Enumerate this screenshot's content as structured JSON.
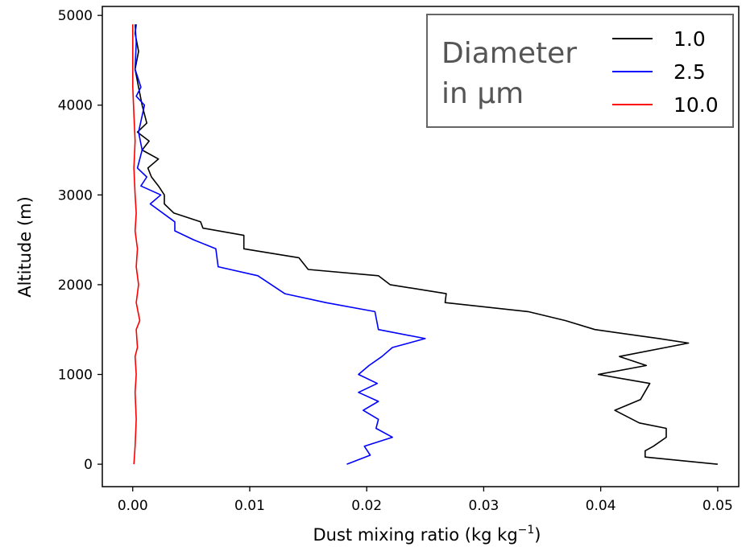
{
  "chart_data": {
    "type": "line",
    "xlabel": "Dust mixing ratio (kg kg",
    "xlabel_superscript": "−1",
    "xlabel_suffix": ")",
    "ylabel": "Altitude (m)",
    "xlim": [
      -0.0026,
      0.0518
    ],
    "ylim": [
      -250,
      5100
    ],
    "xticks": [
      0.0,
      0.01,
      0.02,
      0.03,
      0.04,
      0.05
    ],
    "xtick_labels": [
      "0.00",
      "0.01",
      "0.02",
      "0.03",
      "0.04",
      "0.05"
    ],
    "yticks": [
      0,
      1000,
      2000,
      3000,
      4000,
      5000
    ],
    "ytick_labels": [
      "0",
      "1000",
      "2000",
      "3000",
      "4000",
      "5000"
    ],
    "grid": false,
    "legend": {
      "placement": "top-right",
      "title_lines": [
        "Diameter",
        "in μm"
      ]
    },
    "series": [
      {
        "name": "1.0",
        "color": "#000000",
        "x": [
          0.05,
          0.0438,
          0.0438,
          0.0445,
          0.0456,
          0.0456,
          0.0433,
          0.0412,
          0.0434,
          0.0442,
          0.0398,
          0.0439,
          0.0416,
          0.0475,
          0.045,
          0.0395,
          0.037,
          0.0338,
          0.0267,
          0.0268,
          0.022,
          0.021,
          0.015,
          0.0142,
          0.0095,
          0.0095,
          0.006,
          0.0058,
          0.0035,
          0.0027,
          0.0027,
          0.0022,
          0.0016,
          0.0013,
          0.0022,
          0.0008,
          0.0014,
          0.0004,
          0.0012,
          0.001,
          0.0008,
          0.0005,
          0.0002,
          0.0005,
          0.0002,
          0.0003
        ],
        "y": [
          0,
          80,
          150,
          200,
          300,
          400,
          460,
          600,
          720,
          900,
          1000,
          1100,
          1200,
          1350,
          1400,
          1500,
          1600,
          1700,
          1800,
          1900,
          2000,
          2100,
          2170,
          2300,
          2400,
          2550,
          2630,
          2700,
          2800,
          2900,
          3000,
          3100,
          3200,
          3300,
          3400,
          3500,
          3600,
          3700,
          3800,
          3900,
          4000,
          4200,
          4400,
          4600,
          4800,
          4900
        ]
      },
      {
        "name": "2.5",
        "color": "#0000ff",
        "x": [
          0.0183,
          0.0203,
          0.0198,
          0.0222,
          0.0208,
          0.021,
          0.0197,
          0.021,
          0.0193,
          0.0209,
          0.0193,
          0.0202,
          0.0213,
          0.0222,
          0.025,
          0.021,
          0.0207,
          0.0165,
          0.013,
          0.0107,
          0.0073,
          0.0071,
          0.0052,
          0.0036,
          0.0036,
          0.0015,
          0.0024,
          0.0007,
          0.0012,
          0.0004,
          0.0008,
          0.0005,
          0.001,
          0.0003,
          0.0007,
          0.0002,
          0.0003,
          0.0002
        ],
        "y": [
          0,
          100,
          200,
          300,
          400,
          500,
          600,
          700,
          800,
          900,
          1000,
          1100,
          1200,
          1300,
          1400,
          1500,
          1700,
          1800,
          1900,
          2100,
          2200,
          2400,
          2500,
          2600,
          2700,
          2900,
          3000,
          3100,
          3200,
          3300,
          3500,
          3700,
          4000,
          4100,
          4200,
          4400,
          4700,
          4900
        ]
      },
      {
        "name": "10.0",
        "color": "#ff0000",
        "x": [
          0.0001,
          0.0002,
          0.0003,
          0.0002,
          0.0003,
          0.0002,
          0.0004,
          0.0003,
          0.0006,
          0.0003,
          0.0005,
          0.0003,
          0.0004,
          0.0002,
          0.0003,
          0.0002,
          0.0001,
          0.0002,
          0.0001,
          0.0,
          0.0,
          0.0,
          0.0
        ],
        "y": [
          0,
          200,
          500,
          800,
          1000,
          1200,
          1300,
          1500,
          1600,
          1800,
          2000,
          2200,
          2400,
          2600,
          2800,
          3000,
          3300,
          3600,
          3900,
          4200,
          4500,
          4700,
          4900
        ]
      }
    ]
  }
}
